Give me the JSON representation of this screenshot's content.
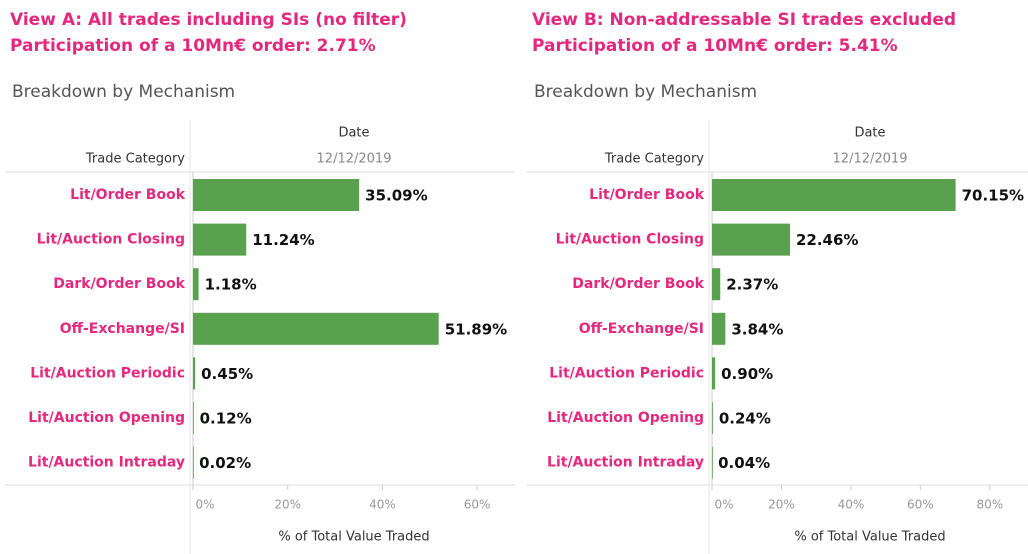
{
  "chart_data": [
    {
      "type": "bar",
      "orientation": "horizontal",
      "title": "View A: All trades including SIs (no filter)",
      "subtitle": "Participation of a 10Mn€ order: 2.71%",
      "section_title": "Breakdown by Mechanism",
      "column_header": "Date",
      "column_value": "12/12/2019",
      "row_header": "Trade Category",
      "xlabel": "% of Total Value Traded",
      "categories": [
        "Lit/Order Book",
        "Lit/Auction Closing",
        "Dark/Order Book",
        "Off-Exchange/SI",
        "Lit/Auction Periodic",
        "Lit/Auction Opening",
        "Lit/Auction Intraday"
      ],
      "values": [
        35.09,
        11.24,
        1.18,
        51.89,
        0.45,
        0.12,
        0.02
      ],
      "value_labels": [
        "35.09%",
        "11.24%",
        "1.18%",
        "51.89%",
        "0.45%",
        "0.12%",
        "0.02%"
      ],
      "color": "#59a14f",
      "xlim": [
        0,
        68
      ],
      "xticks": [
        {
          "value": 0,
          "label": "0%"
        },
        {
          "value": 20,
          "label": "20%"
        },
        {
          "value": 40,
          "label": "40%"
        },
        {
          "value": 60,
          "label": "60%"
        }
      ],
      "grid": false
    },
    {
      "type": "bar",
      "orientation": "horizontal",
      "title": "View B: Non-addressable SI trades excluded",
      "subtitle": "Participation of a 10Mn€ order: 5.41%",
      "section_title": "Breakdown by Mechanism",
      "column_header": "Date",
      "column_value": "12/12/2019",
      "row_header": "Trade Category",
      "xlabel": "% of Total Value Traded",
      "categories": [
        "Lit/Order Book",
        "Lit/Auction Closing",
        "Dark/Order Book",
        "Off-Exchange/SI",
        "Lit/Auction Periodic",
        "Lit/Auction Opening",
        "Lit/Auction Intraday"
      ],
      "values": [
        70.15,
        22.46,
        2.37,
        3.84,
        0.9,
        0.24,
        0.04
      ],
      "value_labels": [
        "70.15%",
        "22.46%",
        "2.37%",
        "3.84%",
        "0.90%",
        "0.24%",
        "0.04%"
      ],
      "color": "#59a14f",
      "xlim": [
        0,
        91
      ],
      "xticks": [
        {
          "value": 0,
          "label": "0%"
        },
        {
          "value": 20,
          "label": "20%"
        },
        {
          "value": 40,
          "label": "40%"
        },
        {
          "value": 60,
          "label": "60%"
        },
        {
          "value": 80,
          "label": "80%"
        }
      ],
      "grid": false
    }
  ]
}
